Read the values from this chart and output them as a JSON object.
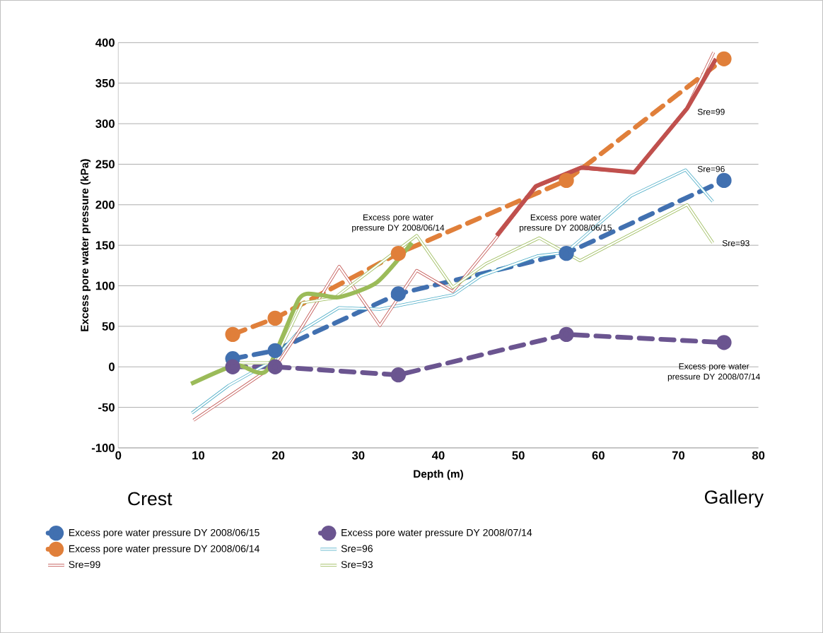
{
  "chart_data": {
    "type": "line",
    "xlabel": "Depth (m)",
    "ylabel": "Excess pore water pressure (kPa)",
    "xlim": [
      0,
      80
    ],
    "xticks": [
      0,
      10,
      20,
      30,
      40,
      50,
      60,
      70,
      80
    ],
    "ylim": [
      -100,
      400
    ],
    "yticks": [
      -100,
      -50,
      0,
      50,
      100,
      150,
      200,
      250,
      300,
      350,
      400
    ],
    "grid": "y",
    "legend": "bottom",
    "series": [
      {
        "name": "Excess pore water pressure DY 2008/06/15",
        "color": "#4170b0",
        "line_style": "dashed",
        "marker": "circle",
        "x": [
          14.3,
          19.6,
          35,
          56,
          75.7
        ],
        "values": [
          10,
          20,
          90,
          140,
          230
        ]
      },
      {
        "name": "Excess pore water pressure DY 2008/07/14",
        "color": "#6b5590",
        "line_style": "dashed",
        "marker": "circle",
        "x": [
          14.3,
          19.6,
          35,
          56,
          75.7
        ],
        "values": [
          0,
          0,
          -10,
          40,
          30
        ]
      },
      {
        "name": "Excess pore water pressure DY 2008/06/14",
        "color": "#e07f3a",
        "line_style": "dashed",
        "marker": "circle",
        "x": [
          14.3,
          19.6,
          35,
          56,
          75.7
        ],
        "values": [
          40,
          60,
          140,
          230,
          380
        ]
      },
      {
        "name": "Sre=96",
        "color": "#4bacc6",
        "line_style": "solid",
        "marker": "none",
        "x": [
          9.2,
          13.8,
          19.4,
          22.3,
          27.6,
          32.7,
          41.9,
          45.3,
          52.4,
          55.9,
          64.1,
          70.9,
          74.3
        ],
        "values": [
          -57,
          -23,
          8,
          41,
          73,
          71,
          89,
          112,
          137,
          141,
          211,
          243,
          204
        ]
      },
      {
        "name": "Sre=99",
        "color": "#c0504d",
        "line_style": "solid",
        "marker": "none",
        "x": [
          9.4,
          20,
          23,
          27.6,
          32.7,
          37.3,
          41.8,
          47,
          52.2,
          57.9,
          64.5,
          71.1,
          74.4
        ],
        "values": [
          -66,
          5,
          50,
          124,
          51,
          119,
          93,
          156,
          222,
          245,
          240,
          320,
          388
        ]
      },
      {
        "name": "Sre=93",
        "color": "#9bbb59",
        "line_style": "solid",
        "marker": "none",
        "x": [
          14,
          19.4,
          23,
          27,
          37.3,
          41.8,
          45.9,
          52.6,
          57.7,
          71.1,
          74.3
        ],
        "values": [
          5,
          5,
          79,
          85,
          162,
          98,
          127,
          159,
          131,
          200,
          153
        ]
      },
      {
        "color": "#9bbb59",
        "line_style": "solid",
        "marker": "none",
        "x": [
          9.1,
          14.7,
          18.5,
          22.6,
          25,
          27.6,
          32.3,
          36.7
        ],
        "values": [
          -21,
          2,
          -5,
          84,
          89,
          86,
          104,
          153
        ]
      },
      {
        "color": "#c0504d",
        "line_style": "solid",
        "marker": "none",
        "x": [
          47.3,
          52.2,
          57.9,
          64.5,
          71.1,
          74.7
        ],
        "values": [
          162,
          223,
          246,
          240,
          319,
          380
        ]
      }
    ],
    "annotations": [
      "Excess pore water pressure DY 2008/06/14",
      "Excess pore water pressure DY 2008/06/15",
      "Excess pore water pressure DY 2008/07/14",
      "Sre=99",
      "Sre=96",
      "Sre=93",
      "Crest",
      "Gallery"
    ]
  }
}
